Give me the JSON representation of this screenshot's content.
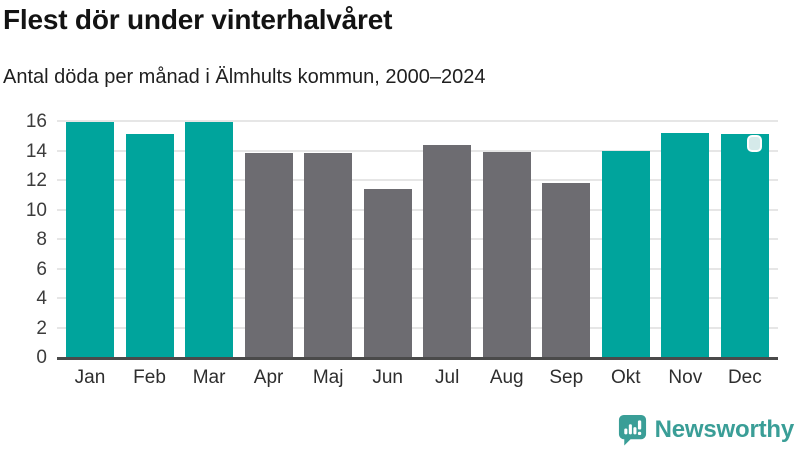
{
  "header": {
    "title": "Flest dör under vinterhalvåret",
    "subtitle": "Antal döda per månad i Älmhults kommun, 2000–2024"
  },
  "chart_data": {
    "type": "bar",
    "title": "Flest dör under vinterhalvåret",
    "subtitle": "Antal döda per månad i Älmhults kommun, 2000–2024",
    "categories": [
      "Jan",
      "Feb",
      "Mar",
      "Apr",
      "Maj",
      "Jun",
      "Jul",
      "Aug",
      "Sep",
      "Okt",
      "Nov",
      "Dec"
    ],
    "values": [
      15.9,
      15.1,
      15.9,
      13.8,
      13.8,
      11.4,
      14.4,
      13.9,
      11.8,
      14.0,
      15.2,
      15.1
    ],
    "bar_colors": [
      "teal",
      "teal",
      "teal",
      "gray",
      "gray",
      "gray",
      "gray",
      "gray",
      "gray",
      "teal",
      "teal",
      "teal"
    ],
    "xlabel": "",
    "ylabel": "",
    "ylim": [
      0,
      16
    ],
    "yticks": [
      0,
      2,
      4,
      6,
      8,
      10,
      12,
      14,
      16
    ],
    "grid": true,
    "legend": false
  },
  "annotations": {
    "selection_handle_month": "Dec"
  },
  "colors": {
    "teal": "#00a49c",
    "gray": "#6d6c71",
    "grid": "#e6e6e6",
    "axis": "#4a4a4a",
    "handle_fill": "#d5eaea",
    "handle_border": "#fdfdfd",
    "logo_teal": "#3a9e97"
  },
  "footer": {
    "brand": "Newsworthy"
  }
}
